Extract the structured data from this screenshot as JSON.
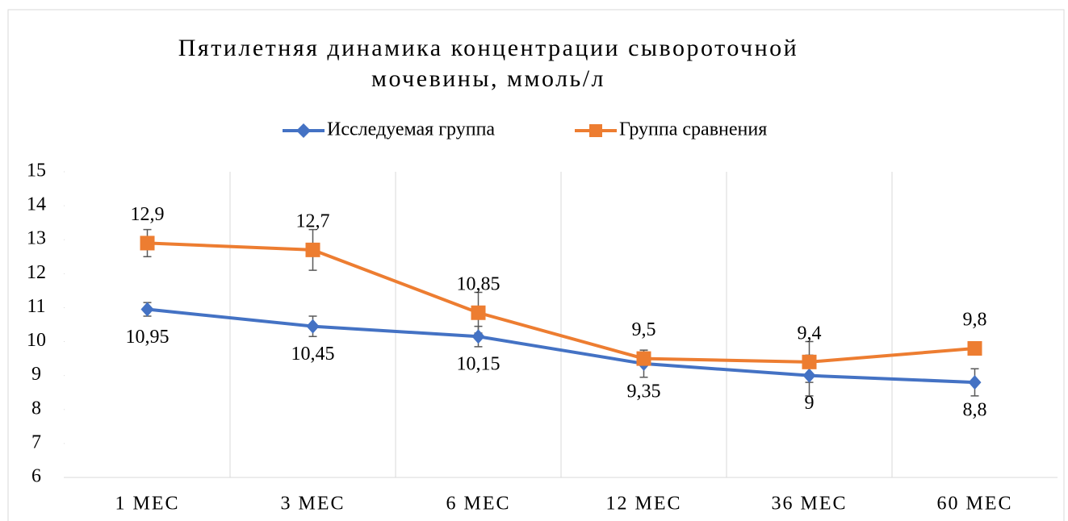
{
  "chart_data": {
    "type": "line",
    "title": "Пятилетняя динамика концентрации сывороточной мочевины, ммоль/л",
    "categories": [
      "1 МЕС",
      "3 МЕС",
      "6 МЕС",
      "12 МЕС",
      "36 МЕС",
      "60 МЕС"
    ],
    "series": [
      {
        "name": "Исследуемая группа",
        "color": "#4472c4",
        "marker": "diamond",
        "values": [
          10.95,
          10.45,
          10.15,
          9.35,
          9,
          8.8
        ],
        "value_labels": [
          "10,95",
          "10,45",
          "10,15",
          "9,35",
          "9",
          "8,8"
        ],
        "errors": [
          0.2,
          0.3,
          0.3,
          0.4,
          0.6,
          0.4
        ],
        "label_position": "below"
      },
      {
        "name": "Группа сравнения",
        "color": "#ed7d31",
        "marker": "square",
        "values": [
          12.9,
          12.7,
          10.85,
          9.5,
          9.4,
          9.8
        ],
        "value_labels": [
          "12,9",
          "12,7",
          "10,85",
          "9,5",
          "9,4",
          "9,8"
        ],
        "errors": [
          0.4,
          0.6,
          0.6,
          0.2,
          0.6,
          0.1
        ],
        "label_position": "above"
      }
    ],
    "ylim": [
      6,
      15
    ],
    "yticks": [
      6,
      7,
      8,
      9,
      10,
      11,
      12,
      13,
      14,
      15
    ],
    "legend": "top"
  }
}
